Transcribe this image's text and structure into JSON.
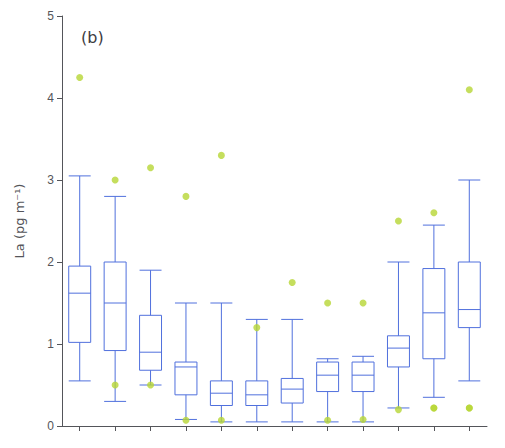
{
  "chart_data": {
    "type": "box",
    "title": "(b)",
    "ylabel": "La (pg m⁻¹)",
    "categories": [
      null,
      null,
      null,
      null,
      null,
      null,
      null,
      null,
      null,
      null,
      null,
      null
    ],
    "values": [
      [
        0.55,
        1.02,
        1.62,
        1.95,
        3.05
      ],
      [
        0.3,
        0.92,
        1.5,
        2.0,
        2.8
      ],
      [
        0.5,
        0.68,
        0.9,
        1.35,
        1.9
      ],
      [
        0.08,
        0.38,
        0.72,
        0.78,
        1.5
      ],
      [
        0.05,
        0.25,
        0.4,
        0.55,
        1.5
      ],
      [
        0.05,
        0.25,
        0.38,
        0.55,
        1.3
      ],
      [
        0.05,
        0.28,
        0.45,
        0.58,
        1.3
      ],
      [
        0.05,
        0.42,
        0.62,
        0.78,
        0.82
      ],
      [
        0.05,
        0.42,
        0.62,
        0.78,
        0.85
      ],
      [
        0.22,
        0.72,
        0.95,
        1.1,
        2.0
      ],
      [
        0.35,
        0.82,
        1.38,
        1.92,
        2.45
      ],
      [
        0.55,
        1.2,
        1.42,
        2.0,
        3.0
      ]
    ],
    "fliers": [
      [
        4.25
      ],
      [
        0.5,
        3.0
      ],
      [
        0.5,
        3.15
      ],
      [
        0.07,
        2.8
      ],
      [
        0.07,
        3.3
      ],
      [
        1.2
      ],
      [
        1.75
      ],
      [
        0.07,
        1.5
      ],
      [
        0.08,
        1.5
      ],
      [
        2.5,
        0.2
      ],
      [
        2.6,
        0.22,
        0.22
      ],
      [
        4.1,
        0.22,
        0.22
      ]
    ],
    "ylim": [
      0,
      5
    ],
    "yticks": [
      0,
      1,
      2,
      3,
      4,
      5
    ],
    "grid": false,
    "tick_labels": "y"
  }
}
